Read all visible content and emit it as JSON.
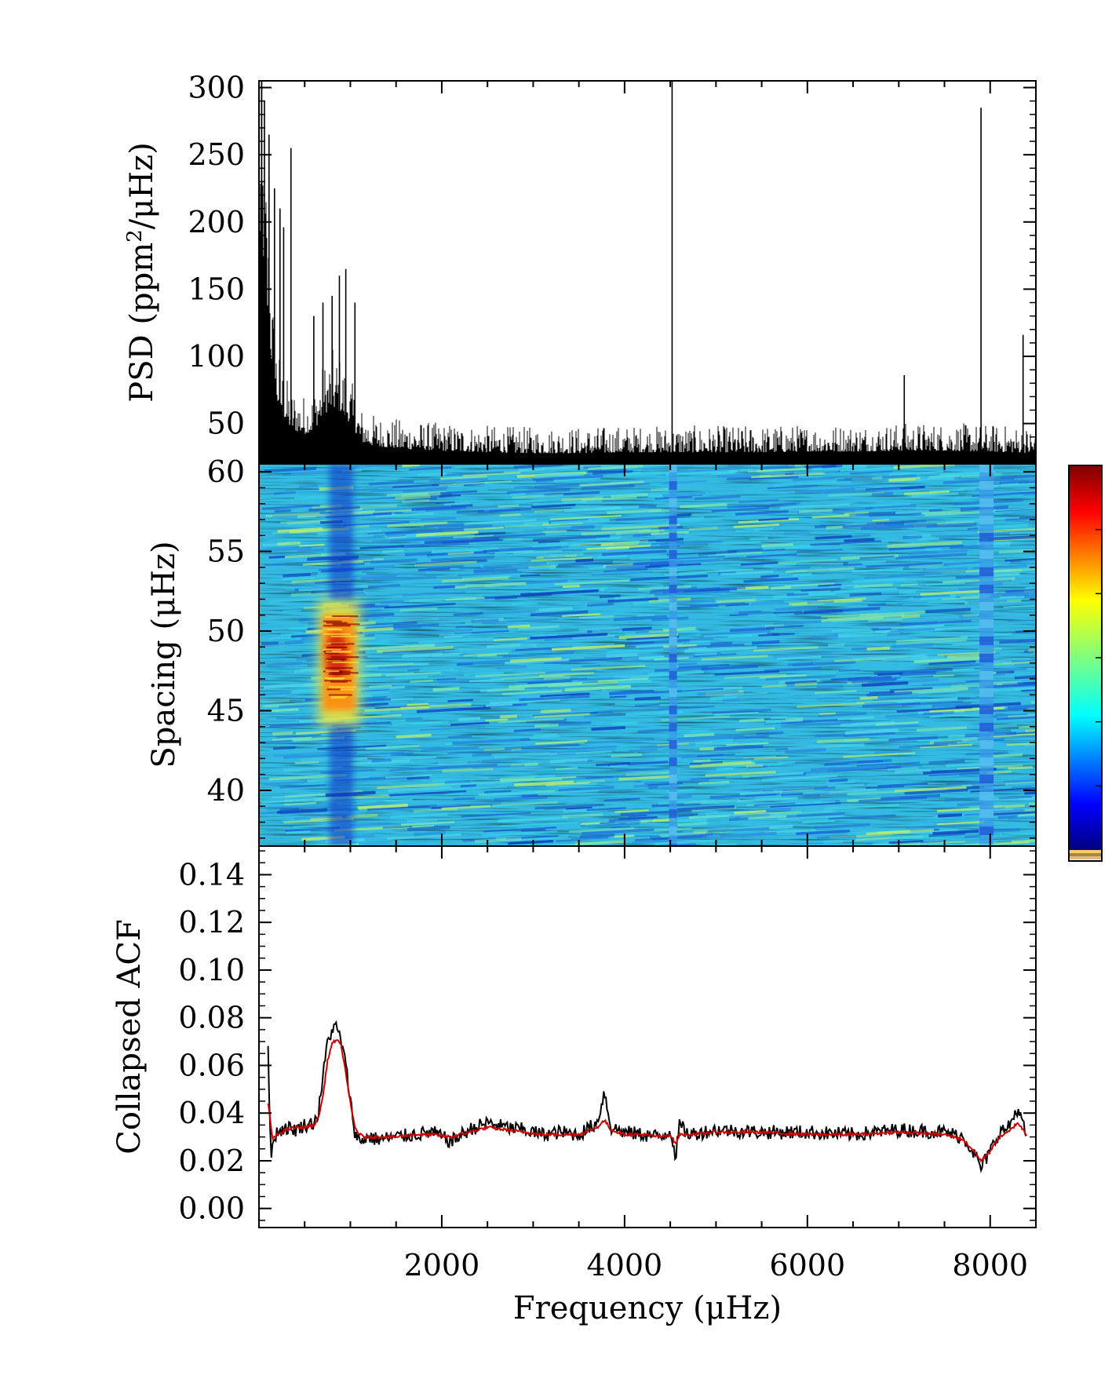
{
  "chart_data": [
    {
      "type": "line",
      "panel": "psd",
      "xlabel": "",
      "ylabel": "PSD (ppm²/μHz)",
      "ylabel_parts": {
        "before": "PSD (ppm",
        "sup": "2",
        "after": "/μHz)"
      },
      "xlim": [
        0,
        8500
      ],
      "ylim": [
        20,
        305
      ],
      "yticks": [
        50,
        100,
        150,
        200,
        250,
        300
      ],
      "ytick_labels": [
        "50",
        "100",
        "150",
        "200",
        "250",
        "300"
      ],
      "envelope": {
        "x": [
          0,
          50,
          100,
          150,
          200,
          300,
          400,
          500,
          600,
          700,
          800,
          900,
          1000,
          1100,
          1200,
          1400,
          1600,
          2000,
          2500,
          3000,
          3500,
          4000,
          4500,
          5000,
          5500,
          6000,
          6500,
          7000,
          7500,
          8000,
          8500
        ],
        "y": [
          300,
          280,
          200,
          140,
          105,
          80,
          72,
          68,
          72,
          90,
          100,
          95,
          80,
          60,
          55,
          52,
          50,
          48,
          46,
          45,
          45,
          46,
          46,
          46,
          46,
          47,
          47,
          48,
          48,
          47,
          45
        ]
      },
      "spikes": [
        {
          "x": 30,
          "y": 305
        },
        {
          "x": 60,
          "y": 290
        },
        {
          "x": 110,
          "y": 265
        },
        {
          "x": 170,
          "y": 225
        },
        {
          "x": 230,
          "y": 210
        },
        {
          "x": 270,
          "y": 196
        },
        {
          "x": 350,
          "y": 255
        },
        {
          "x": 600,
          "y": 130
        },
        {
          "x": 700,
          "y": 140
        },
        {
          "x": 800,
          "y": 145
        },
        {
          "x": 880,
          "y": 160
        },
        {
          "x": 950,
          "y": 165
        },
        {
          "x": 1050,
          "y": 140
        },
        {
          "x": 4520,
          "y": 305
        },
        {
          "x": 7900,
          "y": 285
        },
        {
          "x": 7060,
          "y": 86
        },
        {
          "x": 8360,
          "y": 116
        }
      ]
    },
    {
      "type": "heatmap",
      "panel": "spacing",
      "xlabel": "",
      "ylabel": "Spacing (μHz)",
      "xlim": [
        0,
        8500
      ],
      "ylim": [
        36.5,
        60.5
      ],
      "yticks": [
        40,
        45,
        50,
        55,
        60
      ],
      "ytick_labels": [
        "40",
        "45",
        "50",
        "55",
        "60"
      ],
      "colormap": "jet",
      "peak": {
        "x": 850,
        "y": 48.5
      },
      "features": [
        {
          "kind": "hot-band",
          "x_range": [
            700,
            1050
          ],
          "y_range": [
            45,
            51
          ]
        },
        {
          "kind": "cold-column",
          "x_range": [
            700,
            1050
          ],
          "y_range": [
            36.5,
            44
          ]
        },
        {
          "kind": "cold-column",
          "x_range": [
            700,
            1050
          ],
          "y_range": [
            52,
            60.5
          ]
        },
        {
          "kind": "cold-stripe",
          "x": 4530
        },
        {
          "kind": "cold-stripe",
          "x": 7960
        }
      ]
    },
    {
      "type": "line",
      "panel": "acf",
      "xlabel": "Frequency (μHz)",
      "ylabel": "Collapsed ACF",
      "xlim": [
        0,
        8500
      ],
      "ylim": [
        -0.008,
        0.152
      ],
      "xticks": [
        2000,
        4000,
        6000,
        8000
      ],
      "xtick_labels": [
        "2000",
        "4000",
        "6000",
        "8000"
      ],
      "yticks": [
        0.0,
        0.02,
        0.04,
        0.06,
        0.08,
        0.1,
        0.12,
        0.14
      ],
      "ytick_labels": [
        "0.00",
        "0.02",
        "0.04",
        "0.06",
        "0.08",
        "0.10",
        "0.12",
        "0.14"
      ],
      "series": [
        {
          "color": "#000000",
          "x": [
            100,
            130,
            160,
            200,
            300,
            400,
            500,
            600,
            650,
            700,
            750,
            800,
            850,
            900,
            950,
            1000,
            1050,
            1100,
            1150,
            1200,
            1300,
            1500,
            1700,
            1900,
            2100,
            2300,
            2500,
            2700,
            2900,
            3100,
            3300,
            3500,
            3700,
            3780,
            3850,
            4000,
            4200,
            4400,
            4500,
            4560,
            4600,
            4700,
            5000,
            5500,
            6000,
            6500,
            7000,
            7500,
            7700,
            7800,
            7900,
            8000,
            8100,
            8200,
            8300,
            8400
          ],
          "y": [
            0.066,
            0.02,
            0.03,
            0.032,
            0.034,
            0.033,
            0.035,
            0.036,
            0.04,
            0.055,
            0.07,
            0.075,
            0.076,
            0.07,
            0.06,
            0.045,
            0.032,
            0.028,
            0.029,
            0.03,
            0.029,
            0.03,
            0.031,
            0.032,
            0.028,
            0.033,
            0.036,
            0.034,
            0.033,
            0.031,
            0.032,
            0.031,
            0.036,
            0.049,
            0.034,
            0.032,
            0.031,
            0.03,
            0.033,
            0.022,
            0.035,
            0.031,
            0.033,
            0.032,
            0.032,
            0.031,
            0.033,
            0.032,
            0.03,
            0.025,
            0.017,
            0.024,
            0.032,
            0.034,
            0.042,
            0.03
          ]
        },
        {
          "color": "#cc0000",
          "x": [
            100,
            150,
            200,
            300,
            400,
            500,
            600,
            650,
            700,
            750,
            800,
            850,
            900,
            950,
            1000,
            1050,
            1100,
            1150,
            1200,
            1300,
            1500,
            1700,
            1900,
            2100,
            2300,
            2500,
            2700,
            2900,
            3100,
            3300,
            3500,
            3700,
            3780,
            3850,
            4000,
            4200,
            4400,
            4500,
            4560,
            4600,
            4700,
            5000,
            5500,
            6000,
            6500,
            7000,
            7500,
            7700,
            7800,
            7900,
            8000,
            8100,
            8200,
            8300,
            8400
          ],
          "y": [
            0.044,
            0.029,
            0.031,
            0.033,
            0.034,
            0.034,
            0.035,
            0.038,
            0.047,
            0.062,
            0.069,
            0.071,
            0.068,
            0.057,
            0.044,
            0.034,
            0.031,
            0.03,
            0.03,
            0.03,
            0.03,
            0.031,
            0.031,
            0.03,
            0.032,
            0.034,
            0.033,
            0.032,
            0.031,
            0.031,
            0.031,
            0.034,
            0.037,
            0.033,
            0.031,
            0.031,
            0.03,
            0.031,
            0.027,
            0.031,
            0.031,
            0.032,
            0.032,
            0.031,
            0.031,
            0.032,
            0.031,
            0.029,
            0.025,
            0.02,
            0.024,
            0.03,
            0.032,
            0.036,
            0.031
          ]
        }
      ]
    }
  ],
  "colorbar": {
    "colormap": "jet",
    "footer_colors": [
      "#ffcc66",
      "#aa8844",
      "#ddbb88"
    ]
  }
}
